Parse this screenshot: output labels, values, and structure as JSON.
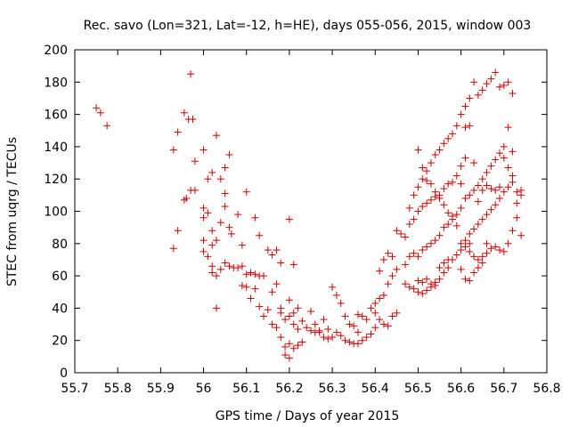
{
  "chart_data": {
    "type": "scatter",
    "title": "Rec. savo (Lon=321, Lat=-12, h=HE), days 055-056, 2015, window 003",
    "xlabel": "GPS time / Days of year 2015",
    "ylabel": "STEC from uqrg / TECUs",
    "xlim": [
      55.7,
      56.8
    ],
    "ylim": [
      0,
      200
    ],
    "xticks": [
      "55.7",
      "55.8",
      "55.9",
      "56",
      "56.1",
      "56.2",
      "56.3",
      "56.4",
      "56.5",
      "56.6",
      "56.7",
      "56.8"
    ],
    "yticks": [
      "0",
      "20",
      "40",
      "60",
      "80",
      "100",
      "120",
      "140",
      "160",
      "180",
      "200"
    ],
    "marker": "plus",
    "color": "#cc0000",
    "grid": false,
    "points": [
      [
        55.75,
        164
      ],
      [
        55.76,
        161
      ],
      [
        55.775,
        153
      ],
      [
        55.93,
        138
      ],
      [
        55.94,
        149
      ],
      [
        55.955,
        161
      ],
      [
        55.965,
        157
      ],
      [
        55.97,
        185
      ],
      [
        55.975,
        157
      ],
      [
        55.93,
        77
      ],
      [
        55.94,
        88
      ],
      [
        55.955,
        107
      ],
      [
        55.96,
        108
      ],
      [
        55.97,
        113
      ],
      [
        55.98,
        113
      ],
      [
        55.98,
        131
      ],
      [
        56.0,
        138
      ],
      [
        56.01,
        120
      ],
      [
        56.02,
        124
      ],
      [
        56.03,
        147
      ],
      [
        56.04,
        120
      ],
      [
        56.05,
        127
      ],
      [
        56.06,
        135
      ],
      [
        56.05,
        111
      ],
      [
        56.0,
        102
      ],
      [
        56.0,
        96
      ],
      [
        56.01,
        99
      ],
      [
        56.02,
        88
      ],
      [
        56.02,
        79
      ],
      [
        56.03,
        82
      ],
      [
        56.04,
        93
      ],
      [
        56.05,
        103
      ],
      [
        56.06,
        90
      ],
      [
        56.065,
        86
      ],
      [
        56.08,
        98
      ],
      [
        56.0,
        82
      ],
      [
        56.0,
        75
      ],
      [
        56.01,
        72
      ],
      [
        56.02,
        66
      ],
      [
        56.02,
        62
      ],
      [
        56.03,
        60
      ],
      [
        56.04,
        64
      ],
      [
        56.05,
        68
      ],
      [
        56.06,
        66
      ],
      [
        56.07,
        65
      ],
      [
        56.08,
        65
      ],
      [
        56.09,
        66
      ],
      [
        56.1,
        61
      ],
      [
        56.11,
        62
      ],
      [
        56.12,
        61
      ],
      [
        56.13,
        60
      ],
      [
        56.09,
        79
      ],
      [
        56.1,
        112
      ],
      [
        56.12,
        96
      ],
      [
        56.13,
        85
      ],
      [
        56.15,
        76
      ],
      [
        56.16,
        73
      ],
      [
        56.17,
        76
      ],
      [
        56.18,
        68
      ],
      [
        56.2,
        95
      ],
      [
        56.21,
        67
      ],
      [
        56.14,
        60
      ],
      [
        56.17,
        55
      ],
      [
        56.03,
        40
      ],
      [
        56.09,
        54
      ],
      [
        56.1,
        53
      ],
      [
        56.11,
        46
      ],
      [
        56.12,
        52
      ],
      [
        56.13,
        41
      ],
      [
        56.14,
        35
      ],
      [
        56.15,
        39
      ],
      [
        56.16,
        30
      ],
      [
        56.16,
        50
      ],
      [
        56.17,
        28
      ],
      [
        56.18,
        37
      ],
      [
        56.18,
        40
      ],
      [
        56.19,
        33
      ],
      [
        56.2,
        35
      ],
      [
        56.2,
        45
      ],
      [
        56.21,
        30
      ],
      [
        56.22,
        27
      ],
      [
        56.18,
        22
      ],
      [
        56.19,
        16
      ],
      [
        56.2,
        18
      ],
      [
        56.21,
        15
      ],
      [
        56.22,
        17
      ],
      [
        56.23,
        19
      ],
      [
        56.19,
        11
      ],
      [
        56.2,
        9
      ],
      [
        56.21,
        37
      ],
      [
        56.22,
        40
      ],
      [
        56.23,
        32
      ],
      [
        56.24,
        28
      ],
      [
        56.25,
        26
      ],
      [
        56.26,
        25
      ],
      [
        56.27,
        25
      ],
      [
        56.28,
        22
      ],
      [
        56.29,
        21
      ],
      [
        56.3,
        22
      ],
      [
        56.25,
        38
      ],
      [
        56.26,
        30
      ],
      [
        56.27,
        26
      ],
      [
        56.28,
        33
      ],
      [
        56.29,
        27
      ],
      [
        56.3,
        53
      ],
      [
        56.31,
        48
      ],
      [
        56.32,
        43
      ],
      [
        56.33,
        35
      ],
      [
        56.34,
        30
      ],
      [
        56.35,
        29
      ],
      [
        56.36,
        25
      ],
      [
        56.31,
        25
      ],
      [
        56.32,
        23
      ],
      [
        56.33,
        20
      ],
      [
        56.34,
        19
      ],
      [
        56.35,
        18
      ],
      [
        56.36,
        18
      ],
      [
        56.37,
        20
      ],
      [
        56.38,
        22
      ],
      [
        56.39,
        24
      ],
      [
        56.4,
        28
      ],
      [
        56.38,
        33
      ],
      [
        56.37,
        35
      ],
      [
        56.36,
        36
      ],
      [
        56.39,
        40
      ],
      [
        56.4,
        43
      ],
      [
        56.41,
        46
      ],
      [
        56.42,
        48
      ],
      [
        56.43,
        55
      ],
      [
        56.44,
        60
      ],
      [
        56.45,
        64
      ],
      [
        56.41,
        63
      ],
      [
        56.42,
        70
      ],
      [
        56.43,
        74
      ],
      [
        56.44,
        72
      ],
      [
        56.45,
        88
      ],
      [
        56.46,
        86
      ],
      [
        56.4,
        37
      ],
      [
        56.41,
        33
      ],
      [
        56.42,
        30
      ],
      [
        56.43,
        29
      ],
      [
        56.44,
        35
      ],
      [
        56.45,
        37
      ],
      [
        56.47,
        55
      ],
      [
        56.48,
        53
      ],
      [
        56.49,
        52
      ],
      [
        56.5,
        50
      ],
      [
        56.51,
        49
      ],
      [
        56.52,
        51
      ],
      [
        56.53,
        53
      ],
      [
        56.54,
        56
      ],
      [
        56.55,
        58
      ],
      [
        56.56,
        62
      ],
      [
        56.57,
        65
      ],
      [
        56.58,
        70
      ],
      [
        56.59,
        73
      ],
      [
        56.6,
        76
      ],
      [
        56.61,
        78
      ],
      [
        56.62,
        80
      ],
      [
        56.47,
        67
      ],
      [
        56.48,
        72
      ],
      [
        56.49,
        74
      ],
      [
        56.5,
        72
      ],
      [
        56.51,
        76
      ],
      [
        56.52,
        78
      ],
      [
        56.53,
        80
      ],
      [
        56.54,
        82
      ],
      [
        56.55,
        85
      ],
      [
        56.56,
        90
      ],
      [
        56.57,
        92
      ],
      [
        56.58,
        97
      ],
      [
        56.59,
        98
      ],
      [
        56.6,
        102
      ],
      [
        56.61,
        108
      ],
      [
        56.47,
        84
      ],
      [
        56.48,
        92
      ],
      [
        56.49,
        95
      ],
      [
        56.5,
        100
      ],
      [
        56.51,
        103
      ],
      [
        56.52,
        105
      ],
      [
        56.53,
        107
      ],
      [
        56.54,
        109
      ],
      [
        56.55,
        110
      ],
      [
        56.56,
        114
      ],
      [
        56.57,
        117
      ],
      [
        56.58,
        118
      ],
      [
        56.59,
        122
      ],
      [
        56.6,
        128
      ],
      [
        56.61,
        133
      ],
      [
        56.48,
        102
      ],
      [
        56.49,
        110
      ],
      [
        56.5,
        115
      ],
      [
        56.51,
        120
      ],
      [
        56.52,
        125
      ],
      [
        56.53,
        130
      ],
      [
        56.54,
        135
      ],
      [
        56.55,
        138
      ],
      [
        56.56,
        142
      ],
      [
        56.57,
        145
      ],
      [
        56.58,
        148
      ],
      [
        56.59,
        153
      ],
      [
        56.6,
        160
      ],
      [
        56.61,
        165
      ],
      [
        56.62,
        170
      ],
      [
        56.63,
        180
      ],
      [
        56.64,
        172
      ],
      [
        56.65,
        175
      ],
      [
        56.66,
        179
      ],
      [
        56.67,
        182
      ],
      [
        56.68,
        186
      ],
      [
        56.69,
        177
      ],
      [
        56.7,
        178
      ],
      [
        56.71,
        180
      ],
      [
        56.72,
        173
      ],
      [
        56.62,
        86
      ],
      [
        56.63,
        89
      ],
      [
        56.64,
        92
      ],
      [
        56.65,
        95
      ],
      [
        56.66,
        98
      ],
      [
        56.67,
        101
      ],
      [
        56.68,
        104
      ],
      [
        56.69,
        108
      ],
      [
        56.7,
        112
      ],
      [
        56.71,
        115
      ],
      [
        56.72,
        118
      ],
      [
        56.73,
        105
      ],
      [
        56.74,
        110
      ],
      [
        56.62,
        110
      ],
      [
        56.63,
        113
      ],
      [
        56.64,
        116
      ],
      [
        56.65,
        120
      ],
      [
        56.66,
        124
      ],
      [
        56.67,
        128
      ],
      [
        56.68,
        132
      ],
      [
        56.69,
        136
      ],
      [
        56.7,
        140
      ],
      [
        56.71,
        152
      ],
      [
        56.72,
        137
      ],
      [
        56.73,
        96
      ],
      [
        56.74,
        85
      ],
      [
        56.6,
        80
      ],
      [
        56.61,
        82
      ],
      [
        56.62,
        75
      ],
      [
        56.63,
        72
      ],
      [
        56.64,
        70
      ],
      [
        56.65,
        72
      ],
      [
        56.66,
        74
      ],
      [
        56.67,
        77
      ],
      [
        56.68,
        78
      ],
      [
        56.69,
        76
      ],
      [
        56.7,
        75
      ],
      [
        56.71,
        80
      ],
      [
        56.72,
        88
      ],
      [
        56.6,
        64
      ],
      [
        56.61,
        58
      ],
      [
        56.62,
        57
      ],
      [
        56.63,
        62
      ],
      [
        56.64,
        65
      ],
      [
        56.65,
        68
      ],
      [
        56.66,
        80
      ],
      [
        56.5,
        57
      ],
      [
        56.51,
        56
      ],
      [
        56.52,
        58
      ],
      [
        56.53,
        55
      ],
      [
        56.54,
        54
      ],
      [
        56.55,
        65
      ],
      [
        56.56,
        68
      ],
      [
        56.57,
        70
      ],
      [
        56.5,
        138
      ],
      [
        56.51,
        127
      ],
      [
        56.52,
        119
      ],
      [
        56.53,
        117
      ],
      [
        56.54,
        112
      ],
      [
        56.55,
        108
      ],
      [
        56.56,
        104
      ],
      [
        56.57,
        99
      ],
      [
        56.58,
        95
      ],
      [
        56.59,
        91
      ],
      [
        56.6,
        117
      ],
      [
        56.61,
        152
      ],
      [
        56.62,
        153
      ],
      [
        56.63,
        130
      ],
      [
        56.64,
        106
      ],
      [
        56.65,
        113
      ],
      [
        56.66,
        116
      ],
      [
        56.67,
        114
      ],
      [
        56.68,
        113
      ],
      [
        56.69,
        115
      ],
      [
        56.7,
        133
      ],
      [
        56.71,
        127
      ],
      [
        56.72,
        122
      ],
      [
        56.73,
        112
      ],
      [
        56.74,
        113
      ]
    ]
  }
}
